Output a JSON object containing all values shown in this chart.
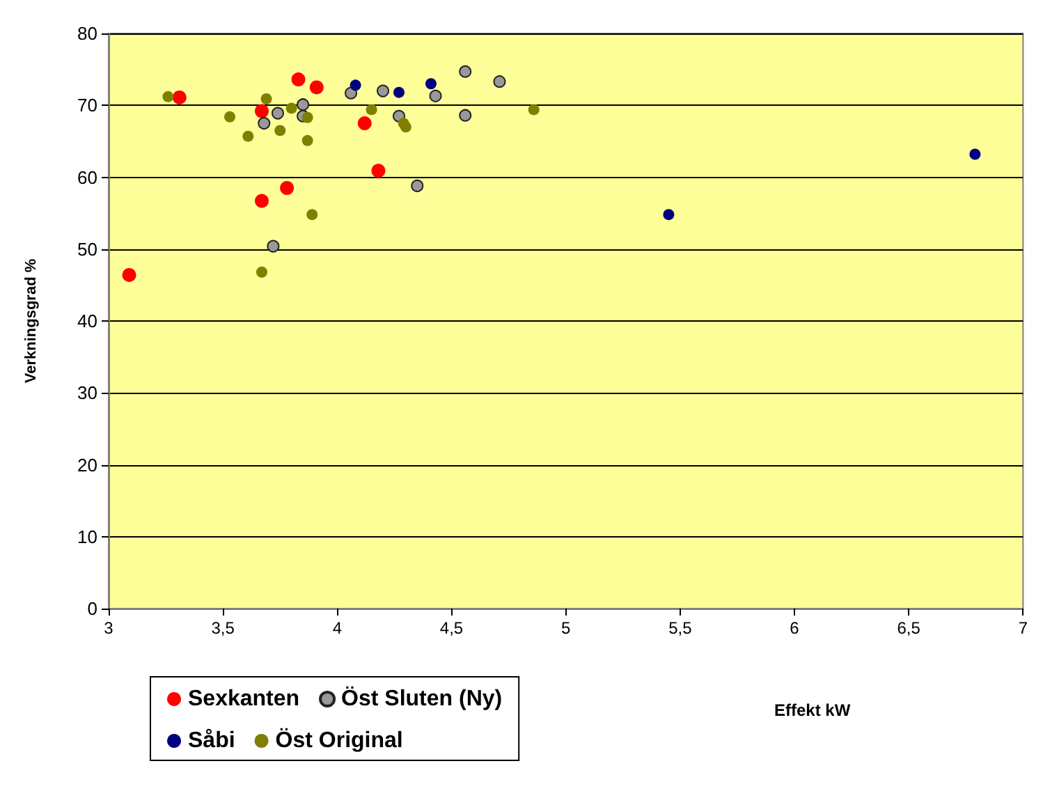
{
  "chart_data": {
    "type": "scatter",
    "xlabel": "Effekt kW",
    "ylabel": "Verkningsgrad %",
    "xlim": [
      3,
      7
    ],
    "xticks": [
      3,
      {
        "value": 3.5,
        "label": "3,5"
      },
      4,
      {
        "value": 4.5,
        "label": "4,5"
      },
      5,
      {
        "value": 5.5,
        "label": "5,5"
      },
      6,
      {
        "value": 6.5,
        "label": "6,5"
      },
      7
    ],
    "ylim": [
      0,
      80
    ],
    "yticks": [
      0,
      10,
      20,
      30,
      40,
      50,
      60,
      70,
      80
    ],
    "grid": "y",
    "legend": "bottom left",
    "marker": "circle",
    "series": [
      {
        "name": "Sexkanten",
        "color": "#ff0000",
        "x": [
          3.09,
          3.31,
          3.67,
          3.67,
          3.78,
          3.83,
          3.91,
          4.12,
          4.18
        ],
        "values": [
          46.4,
          71.1,
          69.2,
          56.7,
          58.5,
          73.6,
          72.5,
          67.5,
          60.9
        ]
      },
      {
        "name": "Öst Sluten (Ny)",
        "color": "#999999",
        "x": [
          3.85,
          3.74,
          3.68,
          3.85,
          3.72,
          4.06,
          4.2,
          4.43,
          4.56,
          4.71,
          4.27,
          4.56,
          4.35
        ],
        "values": [
          70.1,
          68.9,
          67.5,
          68.5,
          50.4,
          71.7,
          72.0,
          71.3,
          74.7,
          73.3,
          68.5,
          68.6,
          58.8
        ]
      },
      {
        "name": "Såbi",
        "color": "#000080",
        "x": [
          4.08,
          4.27,
          4.41,
          5.45,
          6.79
        ],
        "values": [
          72.8,
          71.8,
          73.0,
          54.8,
          63.2
        ]
      },
      {
        "name": "Öst Original",
        "color": "#808000",
        "x": [
          3.26,
          3.69,
          3.53,
          3.8,
          3.87,
          3.61,
          3.75,
          3.87,
          3.89,
          3.67,
          4.15,
          4.29,
          4.3,
          4.86
        ],
        "values": [
          71.2,
          70.9,
          68.4,
          69.6,
          68.3,
          65.7,
          66.5,
          65.1,
          54.8,
          46.8,
          69.4,
          67.5,
          67.0,
          69.4
        ]
      }
    ]
  }
}
